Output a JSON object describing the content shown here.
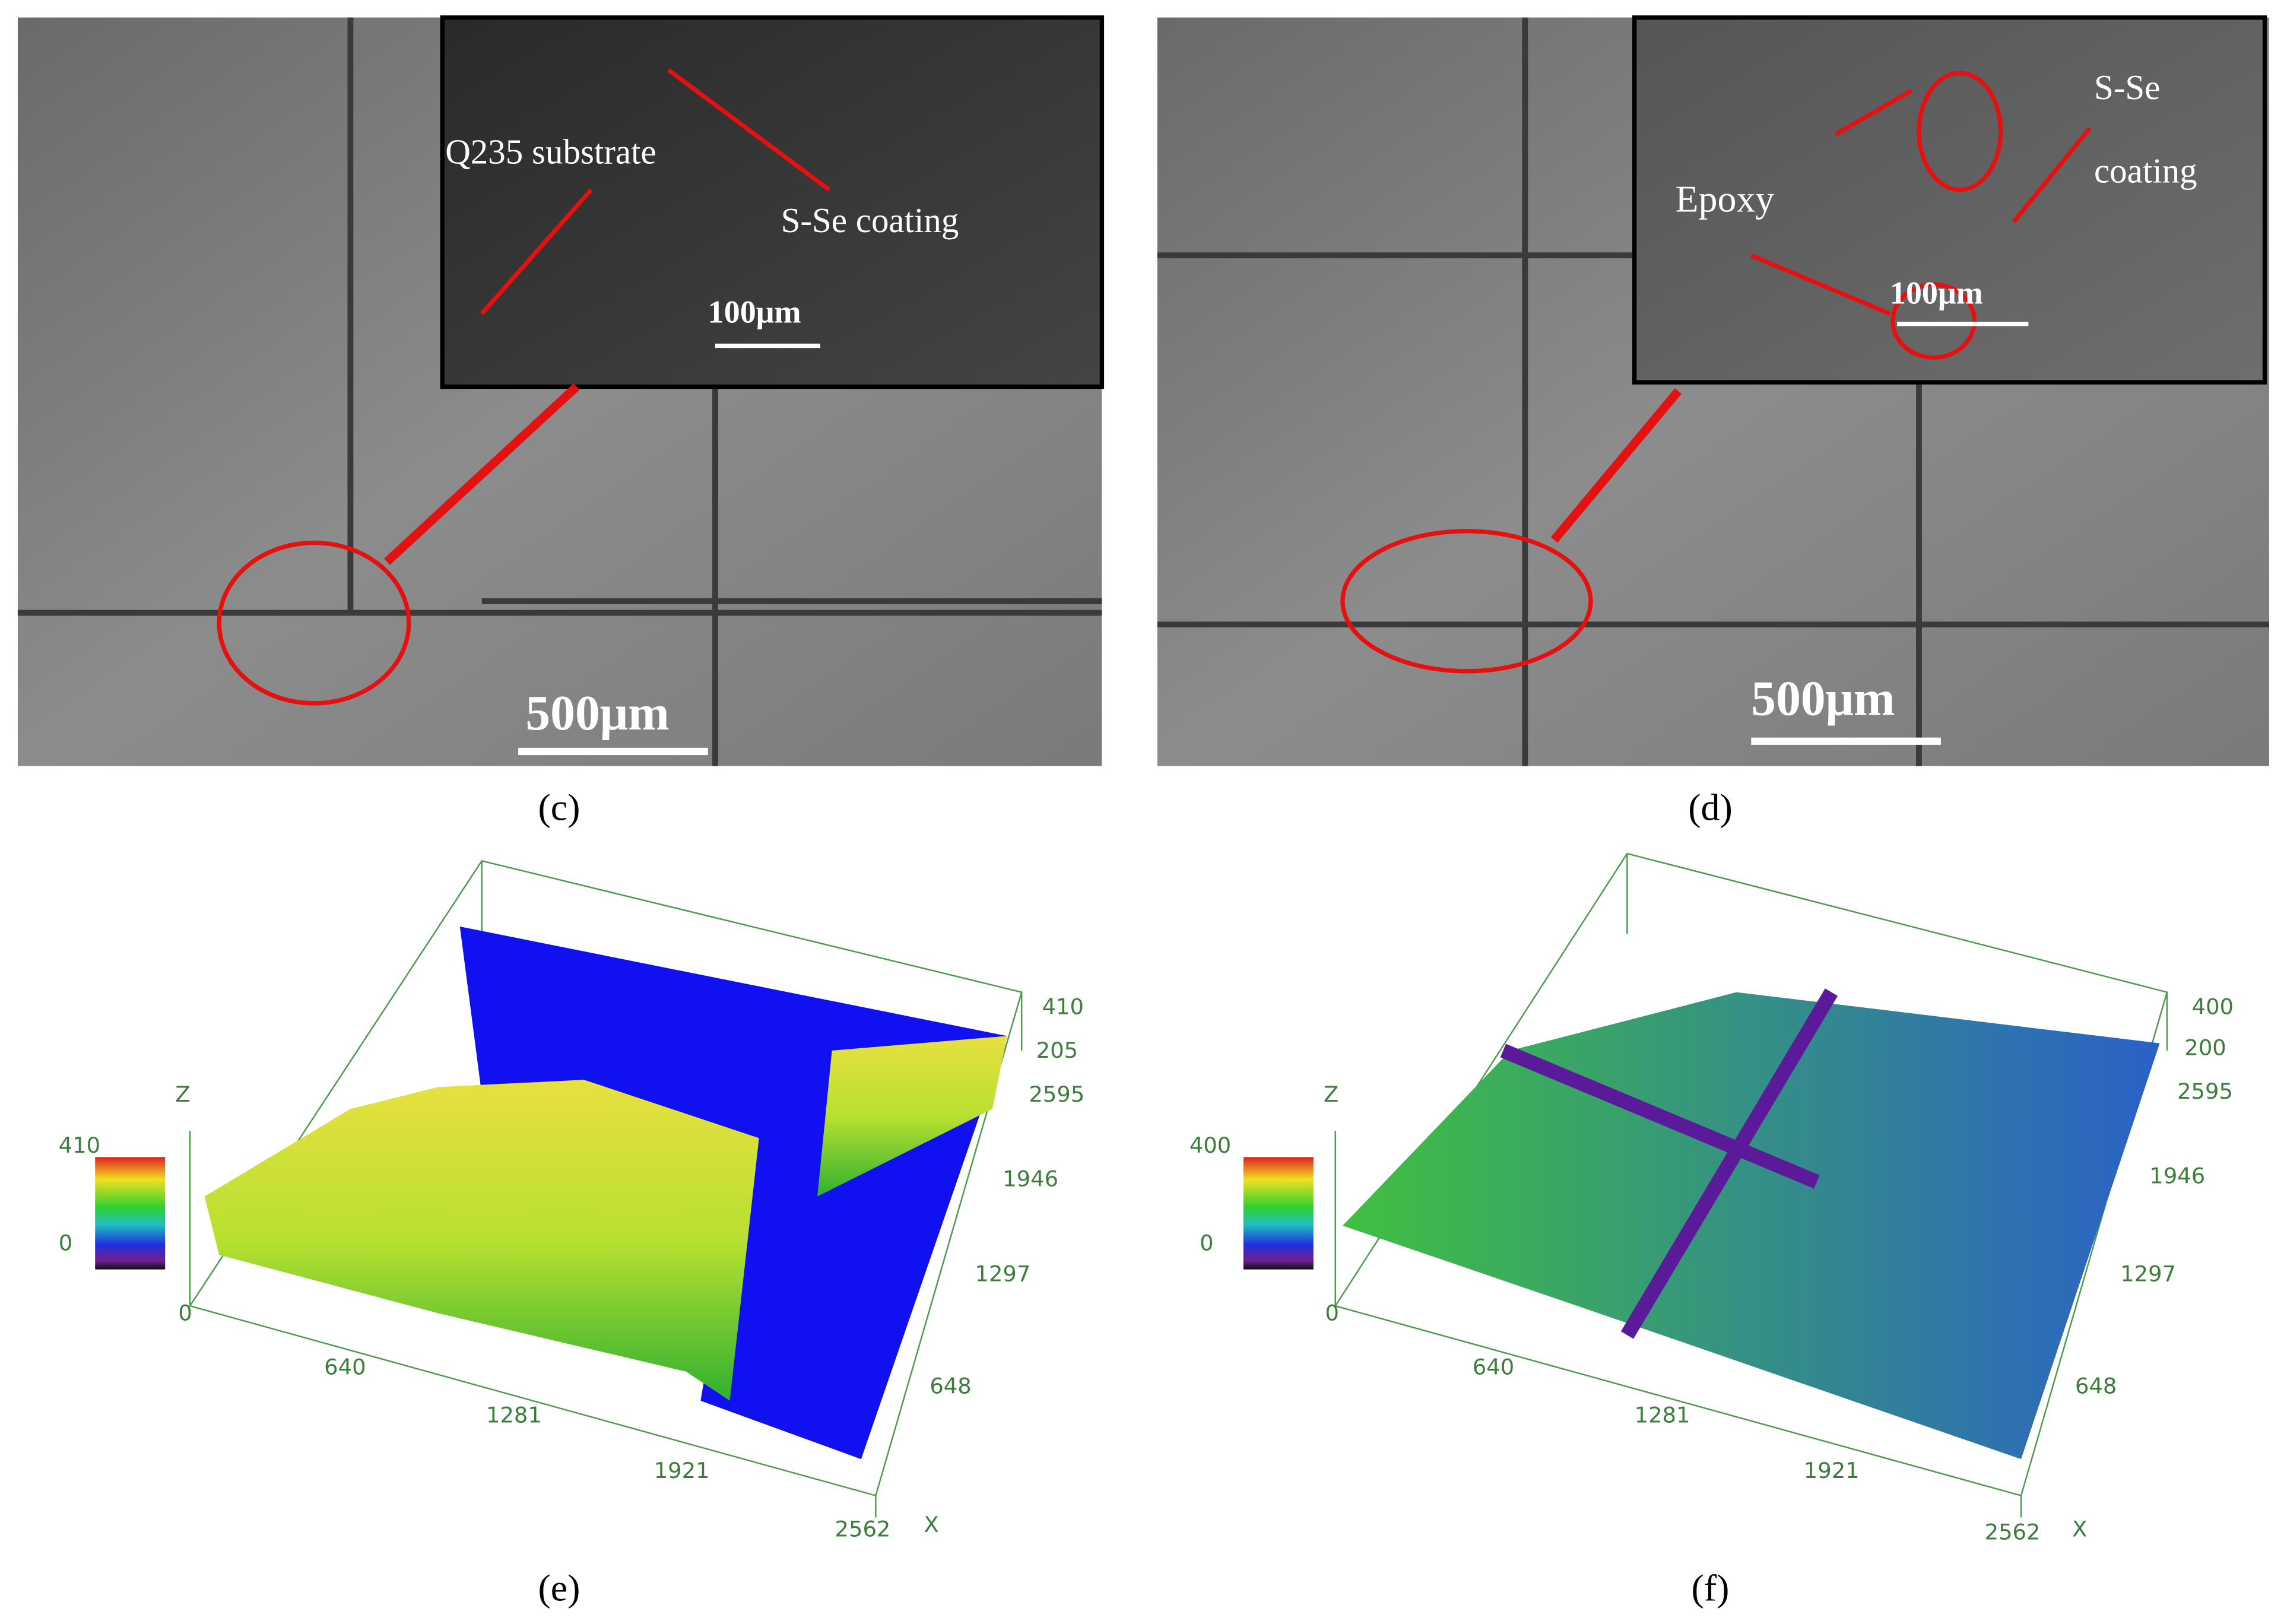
{
  "panels": [
    {
      "label": "(c)",
      "inset": {
        "labels": [
          "Q235 substrate",
          "S-Se coating"
        ],
        "scale": "100μm"
      },
      "scale": "500μm"
    },
    {
      "label": "(d)",
      "inset": {
        "labels": [
          "Epoxy",
          "S-Se",
          "coating"
        ],
        "scale": "100μm"
      },
      "scale": "500μm"
    },
    {
      "label": "(e)",
      "z_axis": "Z",
      "x_axis": "X",
      "colorbar": [
        410,
        0
      ],
      "z_ticks": [
        410,
        205
      ],
      "y_ticks": [
        2595,
        1946,
        1297,
        648
      ],
      "x_ticks": [
        0,
        640,
        1281,
        1921,
        2562
      ]
    },
    {
      "label": "(f)",
      "z_axis": "Z",
      "x_axis": "X",
      "colorbar": [
        400,
        0
      ],
      "z_ticks": [
        400,
        200
      ],
      "y_ticks": [
        2595,
        1946,
        1297,
        648
      ],
      "x_ticks": [
        0,
        640,
        1281,
        1921,
        2562
      ]
    }
  ]
}
